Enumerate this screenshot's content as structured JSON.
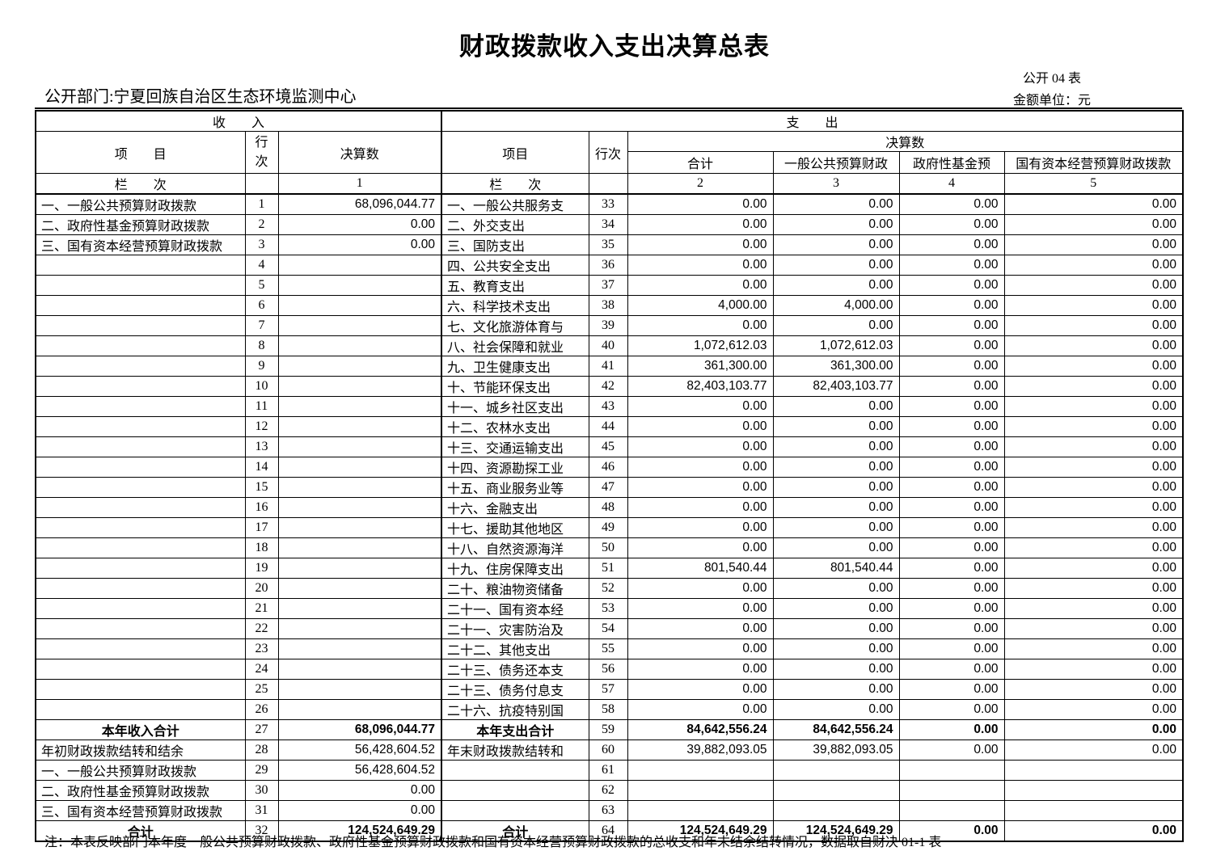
{
  "page": {
    "title": "财政拨款收入支出决算总表",
    "table_code": "公开 04 表",
    "unit_label": "金额单位：元",
    "department": "公开部门:宁夏回族自治区生态环境监测中心",
    "note": "注：本表反映部门本年度一般公共预算财政拨款、政府性基金预算财政拨款和国有资本经营预算财政拨款的总收支和年末结余结转情况，数据取自财决 01-1 表"
  },
  "header": {
    "income_section": "收　　入",
    "expense_section": "支　　出",
    "income_item": "项　　目",
    "income_line_char1": "行",
    "income_line_char2": "次",
    "income_amount": "决算数",
    "expense_item": "项目",
    "expense_line": "行次",
    "expense_amount": "决算数",
    "expense_total": "合计",
    "expense_general": "一般公共预算财政",
    "expense_fund": "政府性基金预",
    "expense_capital": "国有资本经营预算财政拨款",
    "lanci_income": "栏　　次",
    "lanci_expense": "栏　　次",
    "col1": "1",
    "col2": "2",
    "col3": "3",
    "col4": "4",
    "col5": "5"
  },
  "rows": [
    {
      "income_item": "一、一般公共预算财政拨款",
      "income_line": "1",
      "income_value": "68,096,044.77",
      "expense_item": "一、一般公共服务支",
      "expense_line": "33",
      "total": "0.00",
      "general": "0.00",
      "fund": "0.00",
      "capital": "0.00",
      "emphasis": false
    },
    {
      "income_item": "二、政府性基金预算财政拨款",
      "income_line": "2",
      "income_value": "0.00",
      "expense_item": "二、外交支出",
      "expense_line": "34",
      "total": "0.00",
      "general": "0.00",
      "fund": "0.00",
      "capital": "0.00",
      "emphasis": false
    },
    {
      "income_item": "三、国有资本经营预算财政拨款",
      "income_line": "3",
      "income_value": "0.00",
      "expense_item": "三、国防支出",
      "expense_line": "35",
      "total": "0.00",
      "general": "0.00",
      "fund": "0.00",
      "capital": "0.00",
      "emphasis": false
    },
    {
      "income_item": "",
      "income_line": "4",
      "income_value": "",
      "expense_item": "四、公共安全支出",
      "expense_line": "36",
      "total": "0.00",
      "general": "0.00",
      "fund": "0.00",
      "capital": "0.00",
      "emphasis": false
    },
    {
      "income_item": "",
      "income_line": "5",
      "income_value": "",
      "expense_item": "五、教育支出",
      "expense_line": "37",
      "total": "0.00",
      "general": "0.00",
      "fund": "0.00",
      "capital": "0.00",
      "emphasis": false
    },
    {
      "income_item": "",
      "income_line": "6",
      "income_value": "",
      "expense_item": "六、科学技术支出",
      "expense_line": "38",
      "total": "4,000.00",
      "general": "4,000.00",
      "fund": "0.00",
      "capital": "0.00",
      "emphasis": false
    },
    {
      "income_item": "",
      "income_line": "7",
      "income_value": "",
      "expense_item": "七、文化旅游体育与",
      "expense_line": "39",
      "total": "0.00",
      "general": "0.00",
      "fund": "0.00",
      "capital": "0.00",
      "emphasis": false
    },
    {
      "income_item": "",
      "income_line": "8",
      "income_value": "",
      "expense_item": "八、社会保障和就业",
      "expense_line": "40",
      "total": "1,072,612.03",
      "general": "1,072,612.03",
      "fund": "0.00",
      "capital": "0.00",
      "emphasis": false
    },
    {
      "income_item": "",
      "income_line": "9",
      "income_value": "",
      "expense_item": "九、卫生健康支出",
      "expense_line": "41",
      "total": "361,300.00",
      "general": "361,300.00",
      "fund": "0.00",
      "capital": "0.00",
      "emphasis": false
    },
    {
      "income_item": "",
      "income_line": "10",
      "income_value": "",
      "expense_item": "十、节能环保支出",
      "expense_line": "42",
      "total": "82,403,103.77",
      "general": "82,403,103.77",
      "fund": "0.00",
      "capital": "0.00",
      "emphasis": false
    },
    {
      "income_item": "",
      "income_line": "11",
      "income_value": "",
      "expense_item": "十一、城乡社区支出",
      "expense_line": "43",
      "total": "0.00",
      "general": "0.00",
      "fund": "0.00",
      "capital": "0.00",
      "emphasis": false
    },
    {
      "income_item": "",
      "income_line": "12",
      "income_value": "",
      "expense_item": "十二、农林水支出",
      "expense_line": "44",
      "total": "0.00",
      "general": "0.00",
      "fund": "0.00",
      "capital": "0.00",
      "emphasis": false
    },
    {
      "income_item": "",
      "income_line": "13",
      "income_value": "",
      "expense_item": "十三、交通运输支出",
      "expense_line": "45",
      "total": "0.00",
      "general": "0.00",
      "fund": "0.00",
      "capital": "0.00",
      "emphasis": false
    },
    {
      "income_item": "",
      "income_line": "14",
      "income_value": "",
      "expense_item": "十四、资源勘探工业",
      "expense_line": "46",
      "total": "0.00",
      "general": "0.00",
      "fund": "0.00",
      "capital": "0.00",
      "emphasis": false
    },
    {
      "income_item": "",
      "income_line": "15",
      "income_value": "",
      "expense_item": "十五、商业服务业等",
      "expense_line": "47",
      "total": "0.00",
      "general": "0.00",
      "fund": "0.00",
      "capital": "0.00",
      "emphasis": false
    },
    {
      "income_item": "",
      "income_line": "16",
      "income_value": "",
      "expense_item": "十六、金融支出",
      "expense_line": "48",
      "total": "0.00",
      "general": "0.00",
      "fund": "0.00",
      "capital": "0.00",
      "emphasis": false
    },
    {
      "income_item": "",
      "income_line": "17",
      "income_value": "",
      "expense_item": "十七、援助其他地区",
      "expense_line": "49",
      "total": "0.00",
      "general": "0.00",
      "fund": "0.00",
      "capital": "0.00",
      "emphasis": false
    },
    {
      "income_item": "",
      "income_line": "18",
      "income_value": "",
      "expense_item": "十八、自然资源海洋",
      "expense_line": "50",
      "total": "0.00",
      "general": "0.00",
      "fund": "0.00",
      "capital": "0.00",
      "emphasis": false
    },
    {
      "income_item": "",
      "income_line": "19",
      "income_value": "",
      "expense_item": "十九、住房保障支出",
      "expense_line": "51",
      "total": "801,540.44",
      "general": "801,540.44",
      "fund": "0.00",
      "capital": "0.00",
      "emphasis": false
    },
    {
      "income_item": "",
      "income_line": "20",
      "income_value": "",
      "expense_item": "二十、粮油物资储备",
      "expense_line": "52",
      "total": "0.00",
      "general": "0.00",
      "fund": "0.00",
      "capital": "0.00",
      "emphasis": false
    },
    {
      "income_item": "",
      "income_line": "21",
      "income_value": "",
      "expense_item": "二十一、国有资本经",
      "expense_line": "53",
      "total": "0.00",
      "general": "0.00",
      "fund": "0.00",
      "capital": "0.00",
      "emphasis": false
    },
    {
      "income_item": "",
      "income_line": "22",
      "income_value": "",
      "expense_item": "二十一、灾害防治及",
      "expense_line": "54",
      "total": "0.00",
      "general": "0.00",
      "fund": "0.00",
      "capital": "0.00",
      "emphasis": false
    },
    {
      "income_item": "",
      "income_line": "23",
      "income_value": "",
      "expense_item": "二十二、其他支出",
      "expense_line": "55",
      "total": "0.00",
      "general": "0.00",
      "fund": "0.00",
      "capital": "0.00",
      "emphasis": false
    },
    {
      "income_item": "",
      "income_line": "24",
      "income_value": "",
      "expense_item": "二十三、债务还本支",
      "expense_line": "56",
      "total": "0.00",
      "general": "0.00",
      "fund": "0.00",
      "capital": "0.00",
      "emphasis": false
    },
    {
      "income_item": "",
      "income_line": "25",
      "income_value": "",
      "expense_item": "二十三、债务付息支",
      "expense_line": "57",
      "total": "0.00",
      "general": "0.00",
      "fund": "0.00",
      "capital": "0.00",
      "emphasis": false
    },
    {
      "income_item": "",
      "income_line": "26",
      "income_value": "",
      "expense_item": "二十六、抗疫特别国",
      "expense_line": "58",
      "total": "0.00",
      "general": "0.00",
      "fund": "0.00",
      "capital": "0.00",
      "emphasis": false
    },
    {
      "income_item": "本年收入合计",
      "income_line": "27",
      "income_value": "68,096,044.77",
      "expense_item": "本年支出合计",
      "expense_line": "59",
      "total": "84,642,556.24",
      "general": "84,642,556.24",
      "fund": "0.00",
      "capital": "0.00",
      "emphasis": true
    },
    {
      "income_item": "年初财政拨款结转和结余",
      "income_line": "28",
      "income_value": "56,428,604.52",
      "expense_item": "年末财政拨款结转和",
      "expense_line": "60",
      "total": "39,882,093.05",
      "general": "39,882,093.05",
      "fund": "0.00",
      "capital": "0.00",
      "emphasis": false
    },
    {
      "income_item": "一、一般公共预算财政拨款",
      "income_line": "29",
      "income_value": "56,428,604.52",
      "expense_item": "",
      "expense_line": "61",
      "total": "",
      "general": "",
      "fund": "",
      "capital": "",
      "emphasis": false
    },
    {
      "income_item": "二、政府性基金预算财政拨款",
      "income_line": "30",
      "income_value": "0.00",
      "expense_item": "",
      "expense_line": "62",
      "total": "",
      "general": "",
      "fund": "",
      "capital": "",
      "emphasis": false
    },
    {
      "income_item": "三、国有资本经营预算财政拨款",
      "income_line": "31",
      "income_value": "0.00",
      "expense_item": "",
      "expense_line": "63",
      "total": "",
      "general": "",
      "fund": "",
      "capital": "",
      "emphasis": false
    },
    {
      "income_item": "合计",
      "income_line": "32",
      "income_value": "124,524,649.29",
      "expense_item": "合计",
      "expense_line": "64",
      "total": "124,524,649.29",
      "general": "124,524,649.29",
      "fund": "0.00",
      "capital": "0.00",
      "emphasis": true
    }
  ]
}
